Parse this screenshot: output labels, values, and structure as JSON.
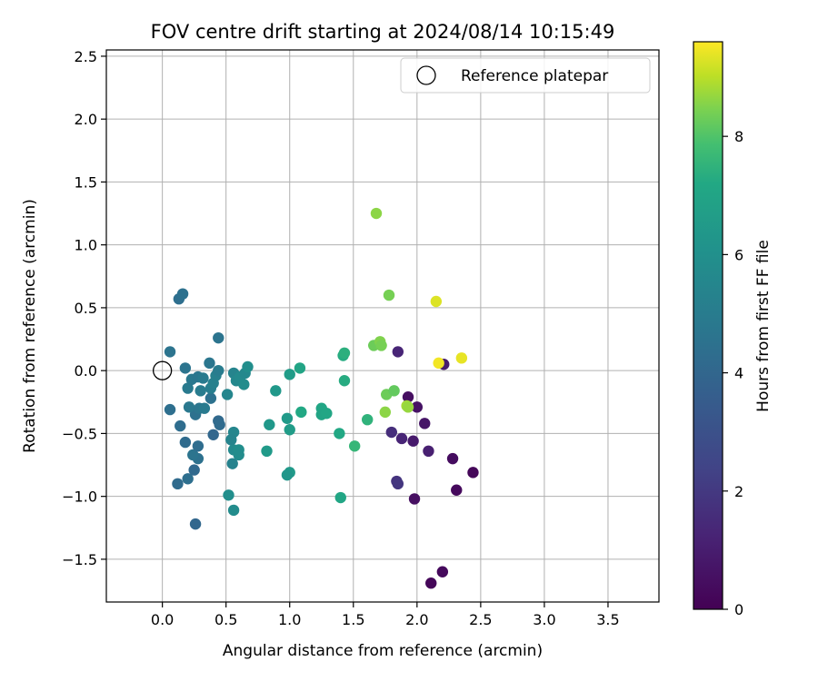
{
  "chart_data": {
    "type": "scatter",
    "title": "FOV centre drift starting at 2024/08/14 10:15:49",
    "xlabel": "Angular distance from reference (arcmin)",
    "ylabel": "Rotation from reference (arcmin)",
    "xlim": [
      -0.44,
      3.9
    ],
    "ylim": [
      -1.84,
      2.55
    ],
    "x_ticks": [
      0.0,
      0.5,
      1.0,
      1.5,
      2.0,
      2.5,
      3.0,
      3.5
    ],
    "x_tick_labels": [
      "0.0",
      "0.5",
      "1.0",
      "1.5",
      "2.0",
      "2.5",
      "3.0",
      "3.5"
    ],
    "y_ticks": [
      -1.5,
      -1.0,
      -0.5,
      0.0,
      0.5,
      1.0,
      1.5,
      2.0,
      2.5
    ],
    "y_tick_labels": [
      "−1.5",
      "−1.0",
      "−0.5",
      "0.0",
      "0.5",
      "1.0",
      "1.5",
      "2.0",
      "2.5"
    ],
    "grid": true,
    "legend": {
      "placement": "top-right",
      "entries": [
        "Reference platepar"
      ]
    },
    "reference": {
      "x": 0.0,
      "y": 0.0,
      "label": "Reference platepar"
    },
    "colorbar": {
      "label": "Hours from first FF file",
      "range": [
        0,
        9.6
      ],
      "ticks": [
        0,
        2,
        4,
        6,
        8
      ],
      "tick_labels": [
        "0",
        "2",
        "4",
        "6",
        "8"
      ],
      "colormap": "viridis"
    },
    "points": [
      {
        "x": 2.11,
        "y": -1.69,
        "h": 0.2
      },
      {
        "x": 2.2,
        "y": -1.6,
        "h": 0.3
      },
      {
        "x": 2.31,
        "y": -0.95,
        "h": 0.3
      },
      {
        "x": 2.44,
        "y": -0.81,
        "h": 0.2
      },
      {
        "x": 2.28,
        "y": -0.7,
        "h": 0.4
      },
      {
        "x": 1.98,
        "y": -1.02,
        "h": 0.5
      },
      {
        "x": 2.06,
        "y": -0.42,
        "h": 0.7
      },
      {
        "x": 1.97,
        "y": -0.56,
        "h": 0.9
      },
      {
        "x": 2.09,
        "y": -0.64,
        "h": 1.1
      },
      {
        "x": 1.93,
        "y": -0.21,
        "h": 0.5
      },
      {
        "x": 2.0,
        "y": -0.29,
        "h": 0.6
      },
      {
        "x": 1.88,
        "y": -0.54,
        "h": 1.3
      },
      {
        "x": 1.8,
        "y": -0.49,
        "h": 1.6
      },
      {
        "x": 1.84,
        "y": -0.88,
        "h": 1.8
      },
      {
        "x": 1.85,
        "y": -0.9,
        "h": 1.9
      },
      {
        "x": 2.21,
        "y": 0.05,
        "h": 1.0
      },
      {
        "x": 1.85,
        "y": 0.15,
        "h": 1.3
      },
      {
        "x": 0.26,
        "y": -1.22,
        "h": 4.0
      },
      {
        "x": 0.12,
        "y": -0.9,
        "h": 4.2
      },
      {
        "x": 0.2,
        "y": -0.86,
        "h": 4.4
      },
      {
        "x": 0.25,
        "y": -0.79,
        "h": 4.1
      },
      {
        "x": 0.28,
        "y": -0.7,
        "h": 4.5
      },
      {
        "x": 0.24,
        "y": -0.67,
        "h": 4.6
      },
      {
        "x": 0.28,
        "y": -0.6,
        "h": 4.3
      },
      {
        "x": 0.18,
        "y": -0.57,
        "h": 4.2
      },
      {
        "x": 0.14,
        "y": -0.44,
        "h": 4.3
      },
      {
        "x": 0.26,
        "y": -0.35,
        "h": 4.5
      },
      {
        "x": 0.06,
        "y": -0.31,
        "h": 4.4
      },
      {
        "x": 0.21,
        "y": -0.29,
        "h": 4.8
      },
      {
        "x": 0.29,
        "y": -0.3,
        "h": 4.7
      },
      {
        "x": 0.33,
        "y": -0.3,
        "h": 4.9
      },
      {
        "x": 0.38,
        "y": -0.22,
        "h": 4.5
      },
      {
        "x": 0.3,
        "y": -0.16,
        "h": 5.0
      },
      {
        "x": 0.2,
        "y": -0.14,
        "h": 4.9
      },
      {
        "x": 0.23,
        "y": -0.07,
        "h": 4.8
      },
      {
        "x": 0.28,
        "y": -0.05,
        "h": 4.7
      },
      {
        "x": 0.32,
        "y": -0.06,
        "h": 4.9
      },
      {
        "x": 0.38,
        "y": -0.14,
        "h": 5.1
      },
      {
        "x": 0.4,
        "y": -0.1,
        "h": 5.2
      },
      {
        "x": 0.42,
        "y": -0.04,
        "h": 5.2
      },
      {
        "x": 0.37,
        "y": 0.06,
        "h": 4.7
      },
      {
        "x": 0.44,
        "y": 0.0,
        "h": 5.0
      },
      {
        "x": 0.18,
        "y": 0.02,
        "h": 4.6
      },
      {
        "x": 0.06,
        "y": 0.15,
        "h": 4.6
      },
      {
        "x": 0.44,
        "y": 0.26,
        "h": 4.6
      },
      {
        "x": 0.13,
        "y": 0.57,
        "h": 4.4
      },
      {
        "x": 0.16,
        "y": 0.61,
        "h": 4.5
      },
      {
        "x": 0.44,
        "y": -0.4,
        "h": 4.1
      },
      {
        "x": 0.45,
        "y": -0.43,
        "h": 4.2
      },
      {
        "x": 0.4,
        "y": -0.51,
        "h": 4.0
      },
      {
        "x": 0.51,
        "y": -0.19,
        "h": 5.5
      },
      {
        "x": 0.56,
        "y": -0.02,
        "h": 5.4
      },
      {
        "x": 0.58,
        "y": -0.08,
        "h": 5.6
      },
      {
        "x": 0.61,
        "y": -0.05,
        "h": 5.7
      },
      {
        "x": 0.64,
        "y": -0.11,
        "h": 5.8
      },
      {
        "x": 0.65,
        "y": -0.02,
        "h": 5.6
      },
      {
        "x": 0.67,
        "y": 0.03,
        "h": 5.9
      },
      {
        "x": 0.56,
        "y": -0.49,
        "h": 5.5
      },
      {
        "x": 0.54,
        "y": -0.55,
        "h": 5.4
      },
      {
        "x": 0.56,
        "y": -0.63,
        "h": 5.7
      },
      {
        "x": 0.6,
        "y": -0.63,
        "h": 5.9
      },
      {
        "x": 0.6,
        "y": -0.67,
        "h": 5.8
      },
      {
        "x": 0.55,
        "y": -0.74,
        "h": 5.3
      },
      {
        "x": 0.52,
        "y": -0.99,
        "h": 5.9
      },
      {
        "x": 0.56,
        "y": -1.11,
        "h": 5.8
      },
      {
        "x": 0.89,
        "y": -0.16,
        "h": 6.4
      },
      {
        "x": 0.84,
        "y": -0.43,
        "h": 6.4
      },
      {
        "x": 0.82,
        "y": -0.64,
        "h": 6.5
      },
      {
        "x": 0.98,
        "y": -0.38,
        "h": 6.5
      },
      {
        "x": 1.0,
        "y": -0.47,
        "h": 6.6
      },
      {
        "x": 1.0,
        "y": -0.81,
        "h": 6.5
      },
      {
        "x": 0.98,
        "y": -0.83,
        "h": 6.3
      },
      {
        "x": 1.0,
        "y": -0.03,
        "h": 6.6
      },
      {
        "x": 1.08,
        "y": 0.02,
        "h": 7.0
      },
      {
        "x": 1.09,
        "y": -0.33,
        "h": 7.2
      },
      {
        "x": 1.25,
        "y": -0.3,
        "h": 7.1
      },
      {
        "x": 1.25,
        "y": -0.35,
        "h": 7.0
      },
      {
        "x": 1.29,
        "y": -0.34,
        "h": 7.1
      },
      {
        "x": 1.39,
        "y": -0.5,
        "h": 7.2
      },
      {
        "x": 1.4,
        "y": -1.01,
        "h": 7.1
      },
      {
        "x": 1.43,
        "y": -0.08,
        "h": 7.3
      },
      {
        "x": 1.42,
        "y": 0.12,
        "h": 7.3
      },
      {
        "x": 1.43,
        "y": 0.14,
        "h": 7.4
      },
      {
        "x": 1.51,
        "y": -0.6,
        "h": 7.6
      },
      {
        "x": 1.61,
        "y": -0.39,
        "h": 7.5
      },
      {
        "x": 1.66,
        "y": 0.2,
        "h": 8.3
      },
      {
        "x": 1.71,
        "y": 0.23,
        "h": 8.5
      },
      {
        "x": 1.72,
        "y": 0.2,
        "h": 8.4
      },
      {
        "x": 1.76,
        "y": -0.19,
        "h": 8.3
      },
      {
        "x": 1.82,
        "y": -0.16,
        "h": 8.2
      },
      {
        "x": 1.75,
        "y": -0.33,
        "h": 8.6
      },
      {
        "x": 1.92,
        "y": -0.28,
        "h": 8.8
      },
      {
        "x": 1.93,
        "y": -0.29,
        "h": 8.7
      },
      {
        "x": 1.78,
        "y": 0.6,
        "h": 8.4
      },
      {
        "x": 1.68,
        "y": 1.25,
        "h": 8.6
      },
      {
        "x": 2.15,
        "y": 0.55,
        "h": 9.3
      },
      {
        "x": 2.17,
        "y": 0.06,
        "h": 9.5
      },
      {
        "x": 2.35,
        "y": 0.1,
        "h": 9.4
      }
    ]
  }
}
